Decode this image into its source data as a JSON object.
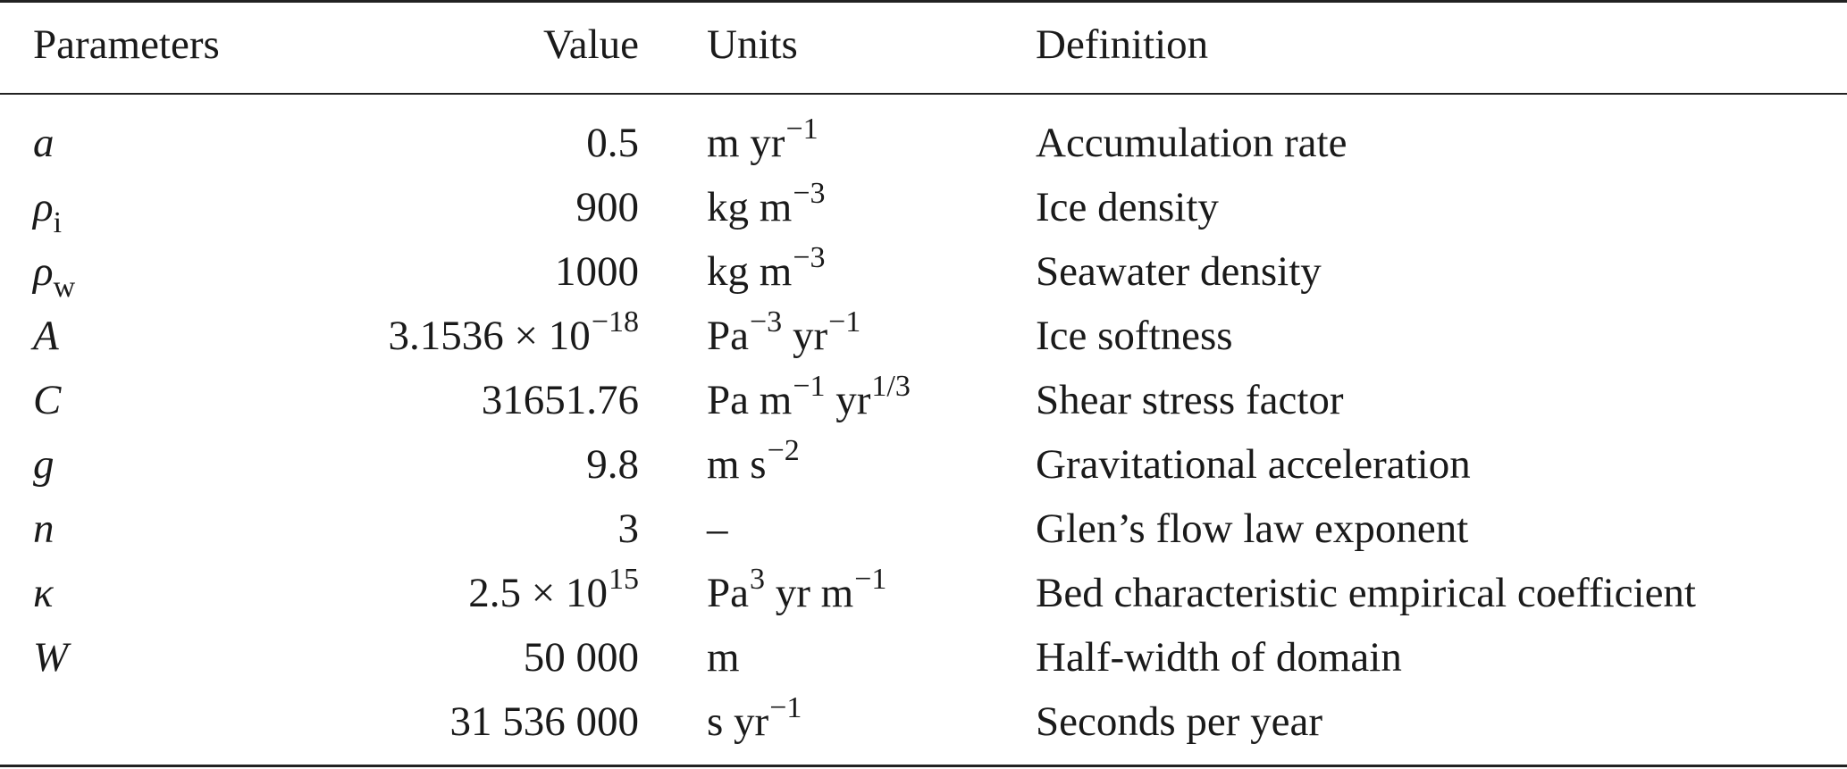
{
  "header": {
    "parameters": "Parameters",
    "value": "Value",
    "units": "Units",
    "definition": "Definition"
  },
  "rows": [
    {
      "symbol": "a",
      "value": "0.5",
      "units": [
        "m yr",
        "−1"
      ],
      "definition": "Accumulation rate"
    },
    {
      "symbol": "ρ",
      "symbol_sub": "i",
      "value": "900",
      "units": [
        "kg m",
        "−3"
      ],
      "definition": "Ice density"
    },
    {
      "symbol": "ρ",
      "symbol_sub": "w",
      "value": "1000",
      "units": [
        "kg m",
        "−3"
      ],
      "definition": "Seawater density"
    },
    {
      "symbol": "A",
      "value": "3.1536 × 10",
      "value_sup": "−18",
      "units": [
        "Pa",
        "−3",
        " yr",
        "−1"
      ],
      "definition": "Ice softness"
    },
    {
      "symbol": "C",
      "value": "31651.76",
      "units": [
        "Pa m",
        "−1",
        " yr",
        "1/3"
      ],
      "definition": "Shear stress factor"
    },
    {
      "symbol": "g",
      "value": "9.8",
      "units": [
        "m s",
        "−2"
      ],
      "definition": "Gravitational acceleration"
    },
    {
      "symbol": "n",
      "value": "3",
      "units": [
        "–"
      ],
      "definition": "Glen’s flow law exponent"
    },
    {
      "symbol": "κ",
      "value": "2.5 × 10",
      "value_sup": "15",
      "units": [
        "Pa",
        "3",
        " yr m",
        "−1"
      ],
      "definition": "Bed characteristic empirical coefficient"
    },
    {
      "symbol": "W",
      "value": "50 000",
      "units": [
        "m"
      ],
      "definition": "Half-width of domain"
    },
    {
      "symbol": "",
      "value": "31 536 000",
      "units": [
        "s yr",
        "−1"
      ],
      "definition": "Seconds per year"
    }
  ]
}
